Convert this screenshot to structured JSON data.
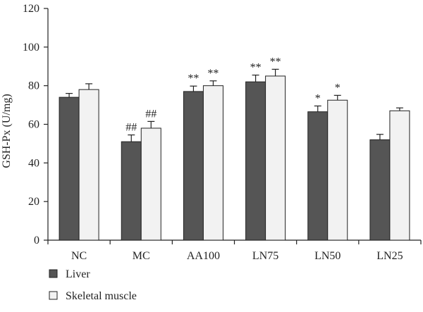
{
  "chart_data": {
    "type": "bar",
    "title": "",
    "xlabel": "",
    "ylabel": "GSH-Px (U/mg)",
    "ylim": [
      0,
      120
    ],
    "yticks": [
      0,
      20,
      40,
      60,
      80,
      100,
      120
    ],
    "grid": false,
    "legend_position": "bottom-left",
    "categories": [
      "NC",
      "MC",
      "AA100",
      "LN75",
      "LN50",
      "LN25"
    ],
    "series": [
      {
        "name": "Liver",
        "color": "#555555",
        "values": [
          74,
          51,
          77,
          82,
          66.5,
          52
        ],
        "errors": [
          2,
          3.5,
          2.8,
          3.5,
          3,
          2.8
        ],
        "annotations": [
          "",
          "##",
          "**",
          "**",
          "*",
          ""
        ]
      },
      {
        "name": "Skeletal muscle",
        "color": "#f2f2f2",
        "values": [
          78,
          58,
          80,
          85,
          72.5,
          67
        ],
        "errors": [
          3,
          3.5,
          2.5,
          3.5,
          2.5,
          1.5
        ],
        "annotations": [
          "",
          "##",
          "**",
          "**",
          "*",
          ""
        ]
      }
    ]
  }
}
